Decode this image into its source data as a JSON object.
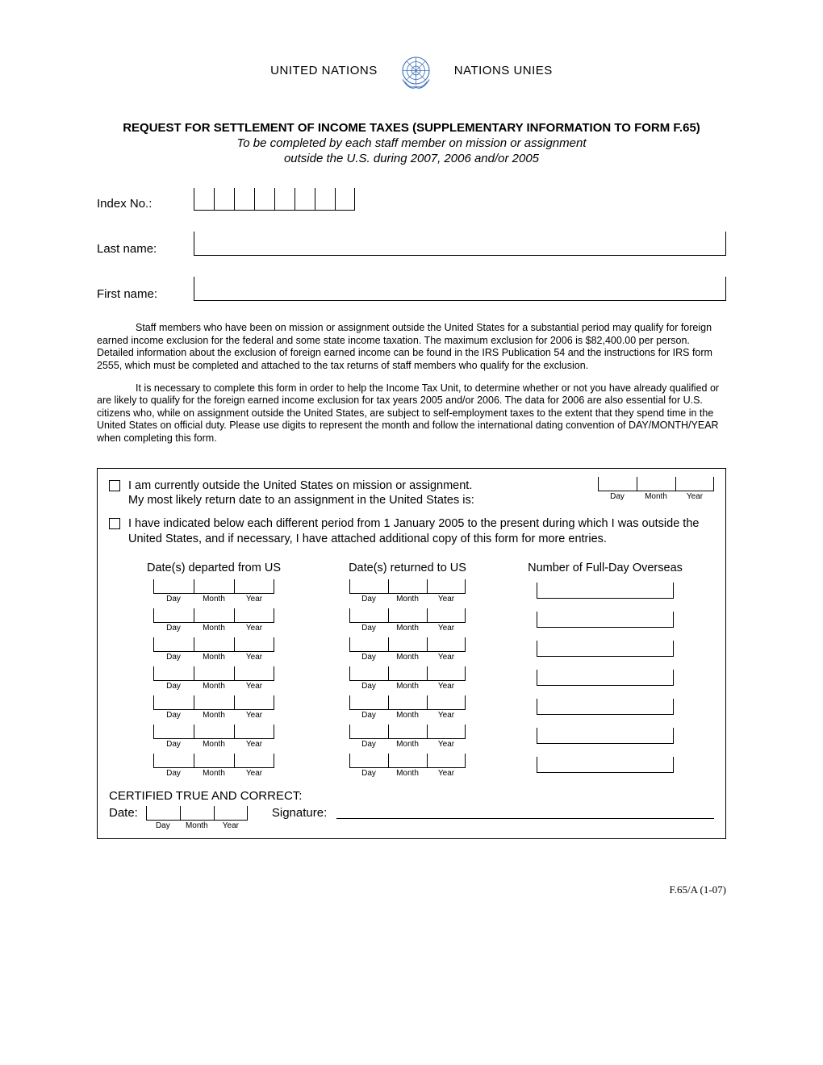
{
  "header": {
    "left": "UNITED NATIONS",
    "right": "NATIONS UNIES",
    "emblem_color": "#3b6db8"
  },
  "title": "REQUEST FOR SETTLEMENT OF INCOME TAXES (SUPPLEMENTARY INFORMATION TO FORM F.65)",
  "subtitle_line1": "To be completed by each staff member on mission or assignment",
  "subtitle_line2": "outside the U.S. during 2007, 2006 and/or 2005",
  "fields": {
    "index_label": "Index No.:",
    "index_cell_count": 8,
    "last_name_label": "Last name:",
    "first_name_label": "First name:"
  },
  "paragraph1": "Staff members who have been on mission or assignment outside the United States for a substantial period may qualify for foreign earned income exclusion for the federal and some state income taxation.  The maximum exclusion for 2006 is $82,400.00 per person. Detailed information about the exclusion of foreign earned income can be found in the IRS Publication 54 and the instructions for IRS form 2555, which must be completed and attached to the tax returns of staff members who qualify for the exclusion.",
  "paragraph2": "It is necessary to complete this form in order to help the Income Tax Unit, to determine whether or not you have already qualified or are likely to qualify for the foreign earned income exclusion for tax years 2005 and/or 2006. The data for 2006 are also essential for U.S. citizens who, while on assignment outside the United States, are subject to self-employment taxes to the extent that they spend time in the United States on official duty.  Please use digits to represent the month and follow the international dating convention of DAY/MONTH/YEAR when completing this form.",
  "checkbox1_line1": "I am currently outside the United States on mission or assignment.",
  "checkbox1_line2": "My most likely return date to an assignment in the United States is:",
  "checkbox2_text": "I have indicated below each different period from 1 January 2005 to the present during which I was outside the United States, and if necessary, I have attached additional copy of this form for more entries.",
  "dmy": {
    "day": "Day",
    "month": "Month",
    "year": "Year"
  },
  "columns": {
    "h1": "Date(s) departed from US",
    "h2": "Date(s) returned to US",
    "h3": "Number of Full-Day Overseas"
  },
  "entry_rows": 7,
  "certification": "CERTIFIED TRUE AND CORRECT:",
  "date_label": "Date:",
  "signature_label": "Signature:",
  "form_code": "F.65/A (1-07)"
}
